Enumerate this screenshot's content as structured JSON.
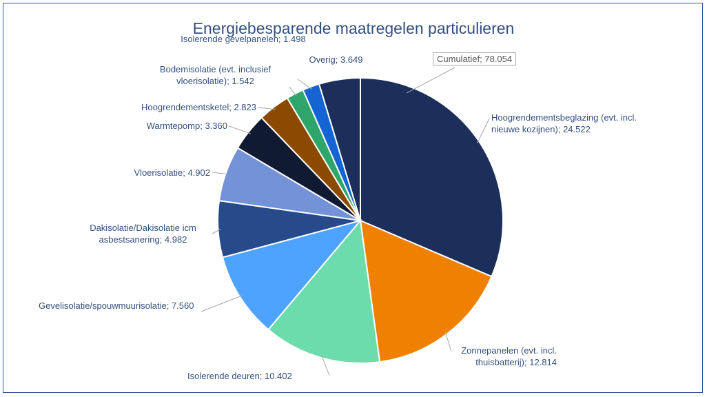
{
  "chart_data": {
    "type": "pie",
    "title": "Energiebesparende maatregelen particulieren",
    "categories": [
      "Hoogrendementsbeglazing (evt. incl. nieuwe kozijnen);",
      "Zonnepanelen (evt. incl. thuisbatterij);",
      "Isolerende deuren;",
      "Gevelisolatie/spouwmuurisolatie;",
      "Dakisolatie/Dakisolatie icm asbestsanering;",
      "Vloerisolatie;",
      "Warmtepomp;",
      "Hoogrendementsketel;",
      "Bodemisolatie (evt. inclusief vloerisolatie);",
      "Isolerende gevelpanelen;",
      "Overig;"
    ],
    "values": [
      24522,
      12814,
      10402,
      7560,
      4982,
      4902,
      3360,
      2823,
      1542,
      1498,
      3649
    ],
    "value_labels": [
      "24.522",
      "12.814",
      "10.402",
      "7.560",
      "4.982",
      "4.902",
      "3.360",
      "2.823",
      "1.542",
      "1.498",
      "3.649"
    ],
    "colors": [
      "#1b2f5a",
      "#f08000",
      "#6ddcac",
      "#4da3ff",
      "#264a8a",
      "#7392d8",
      "#111a33",
      "#8b4a00",
      "#2ea56a",
      "#1464d4",
      "#1b2f5a"
    ],
    "annotation": "Cumulatief; 78.054"
  }
}
